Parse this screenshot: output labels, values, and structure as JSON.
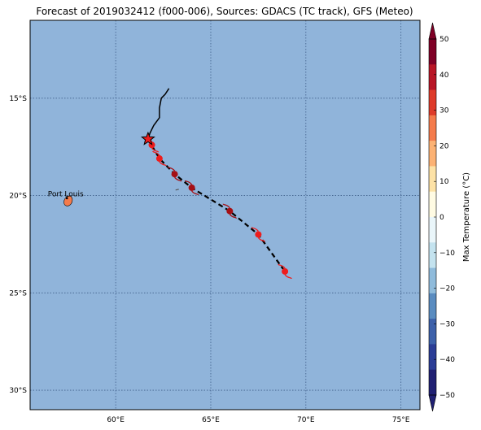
{
  "title": "Forecast of 2019032412 (f000-006), Sources: GDACS (TC track), GFS (Meteo)",
  "map": {
    "lon_range": [
      55.5,
      76
    ],
    "lat_range": [
      -31,
      -11
    ],
    "lon_ticks": [
      {
        "value": 60,
        "label": "60°E"
      },
      {
        "value": 65,
        "label": "65°E"
      },
      {
        "value": 70,
        "label": "70°E"
      },
      {
        "value": 75,
        "label": "75°E"
      }
    ],
    "lat_ticks": [
      {
        "value": -15,
        "label": "15°S"
      },
      {
        "value": -20,
        "label": "20°S"
      },
      {
        "value": -25,
        "label": "25°S"
      },
      {
        "value": -30,
        "label": "30°S"
      }
    ],
    "ocean_color": "#90b4da",
    "gridline_color": "#3f5f8a"
  },
  "past_track": [
    [
      62.8,
      -14.5
    ],
    [
      62.6,
      -14.8
    ],
    [
      62.4,
      -15.0
    ],
    [
      62.3,
      -15.5
    ],
    [
      62.3,
      -16.0
    ],
    [
      62.0,
      -16.4
    ],
    [
      61.8,
      -16.8
    ],
    [
      61.7,
      -17.1
    ]
  ],
  "current_position": {
    "lon": 61.7,
    "lat": -17.1
  },
  "forecast_track": [
    [
      61.7,
      -17.1
    ],
    [
      62.3,
      -18.1
    ],
    [
      63.1,
      -18.9
    ],
    [
      64.0,
      -19.6
    ],
    [
      66.0,
      -20.8
    ],
    [
      67.5,
      -22.0
    ],
    [
      68.9,
      -23.9
    ]
  ],
  "forecast_points": [
    {
      "lon": 61.9,
      "lat": -17.4,
      "color": "#ee1c1c"
    },
    {
      "lon": 62.3,
      "lat": -18.1,
      "color": "#ee1c1c"
    },
    {
      "lon": 63.1,
      "lat": -18.9,
      "color": "#a50f15"
    },
    {
      "lon": 64.0,
      "lat": -19.6,
      "color": "#a50f15"
    },
    {
      "lon": 66.0,
      "lat": -20.8,
      "color": "#a50f15"
    },
    {
      "lon": 67.5,
      "lat": -22.0,
      "color": "#ee1c1c"
    },
    {
      "lon": 68.9,
      "lat": -23.9,
      "color": "#ee1c1c"
    }
  ],
  "place": {
    "name": "Port Louis",
    "lon": 57.5,
    "lat": -20.2
  },
  "colorbar": {
    "label": "Max Temperature (°C)",
    "vmin": -50,
    "vmax": 50,
    "ticks": [
      50,
      40,
      30,
      20,
      10,
      0,
      -10,
      -20,
      -30,
      -40,
      -50
    ],
    "tick_labels": [
      "50",
      "40",
      "30",
      "20",
      "10",
      "0",
      "−10",
      "−20",
      "−30",
      "−40",
      "−50"
    ],
    "colors": [
      "#202073",
      "#2b3d96",
      "#3d61aa",
      "#5a8cc0",
      "#8fbbdb",
      "#c4e3ef",
      "#eaf6fa",
      "#fffbe3",
      "#fde2a6",
      "#fcb274",
      "#f47b4c",
      "#de3b2a",
      "#b81526",
      "#7f0026"
    ]
  }
}
